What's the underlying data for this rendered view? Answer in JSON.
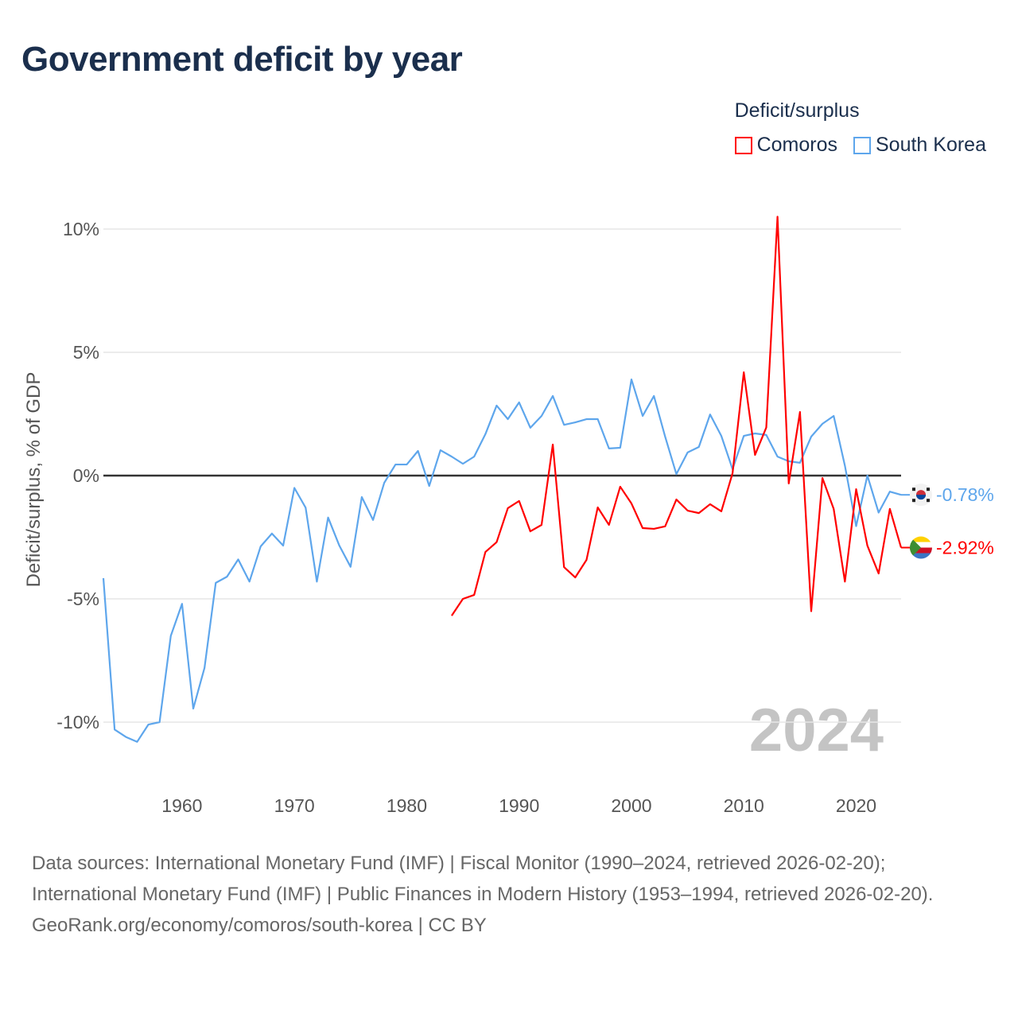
{
  "title": "Government deficit by year",
  "legend": {
    "title": "Deficit/surplus",
    "items": [
      {
        "label": "Comoros",
        "color": "#ff0000"
      },
      {
        "label": "South Korea",
        "color": "#5ea6ec"
      }
    ]
  },
  "year_watermark": "2024",
  "footer": {
    "sources": "Data sources: International Monetary Fund (IMF) | Fiscal Monitor (1990–2024, retrieved 2026-02-20); International Monetary Fund (IMF) | Public Finances in Modern History (1953–1994, retrieved 2026-02-20).",
    "credit": "GeoRank.org/economy/comoros/south-korea | CC BY"
  },
  "chart_data": {
    "type": "line",
    "title": "Government deficit by year",
    "xlabel": "",
    "ylabel": "Deficit/surplus, % of GDP",
    "xlim": [
      1953,
      2024
    ],
    "ylim": [
      -10,
      10
    ],
    "xticks": [
      1960,
      1970,
      1980,
      1990,
      2000,
      2010,
      2020
    ],
    "xtick_labels": [
      "1960",
      "1970",
      "1980",
      "1990",
      "2000",
      "2010",
      "2020"
    ],
    "yticks": [
      10,
      5,
      0,
      -5,
      -10
    ],
    "ytick_labels": [
      "10%",
      "5%",
      "0%",
      "-5%",
      "-10%"
    ],
    "grid": true,
    "series": [
      {
        "name": "South Korea",
        "color": "#5ea6ec",
        "end_label": "-0.78%",
        "start_year": 1953,
        "values": [
          -4.16,
          -10.3,
          -10.6,
          -10.8,
          -10.1,
          -10.0,
          -6.5,
          -5.2,
          -9.45,
          -7.8,
          -4.35,
          -4.1,
          -3.4,
          -4.3,
          -2.87,
          -2.35,
          -2.84,
          -0.5,
          -1.3,
          -4.3,
          -1.7,
          -2.84,
          -3.7,
          -0.87,
          -1.8,
          -0.29,
          0.45,
          0.45,
          1.0,
          -0.42,
          1.03,
          0.77,
          0.48,
          0.77,
          1.68,
          2.84,
          2.29,
          2.97,
          1.94,
          2.42,
          3.23,
          2.06,
          2.16,
          2.29,
          2.29,
          1.1,
          1.13,
          3.9,
          2.42,
          3.23,
          1.58,
          0.06,
          0.94,
          1.16,
          2.48,
          1.61,
          0.26,
          1.61,
          1.71,
          1.65,
          0.77,
          0.58,
          0.52,
          1.58,
          2.1,
          2.42,
          0.4,
          -2.05,
          0.0,
          -1.5,
          -0.65,
          -0.78
        ]
      },
      {
        "name": "Comoros",
        "color": "#ff0000",
        "end_label": "-2.92%",
        "start_year": 1984,
        "values": [
          -5.68,
          -5.0,
          -4.84,
          -3.1,
          -2.7,
          -1.32,
          -1.03,
          -2.26,
          -2.0,
          1.26,
          -3.71,
          -4.13,
          -3.42,
          -1.29,
          -2.0,
          -0.45,
          -1.13,
          -2.13,
          -2.16,
          -2.06,
          -0.97,
          -1.42,
          -1.52,
          -1.16,
          -1.45,
          0.1,
          4.19,
          0.84,
          1.95,
          10.5,
          -0.32,
          2.58,
          -5.5,
          -0.1,
          -1.35,
          -4.3,
          -0.55,
          -2.84,
          -3.97,
          -1.35,
          -2.92
        ]
      }
    ]
  }
}
